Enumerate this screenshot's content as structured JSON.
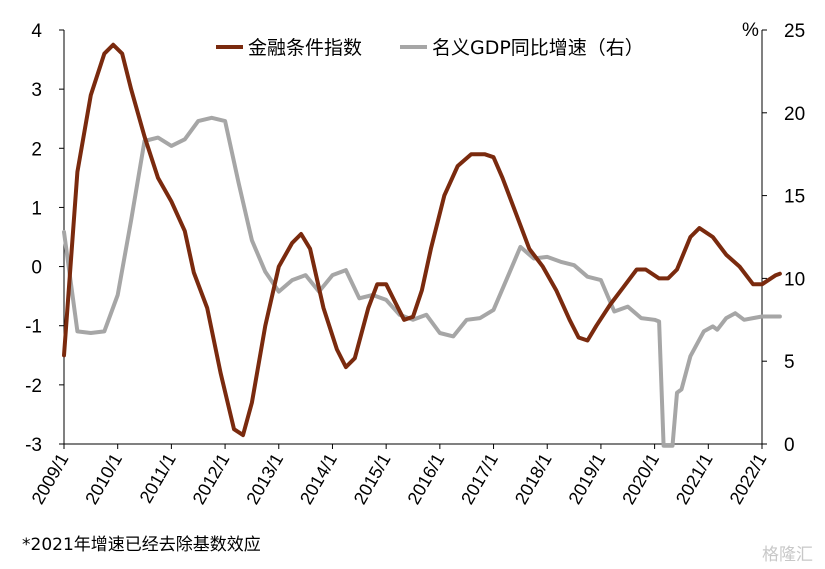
{
  "chart_data": {
    "type": "line",
    "ylim_left": [
      -3,
      4
    ],
    "ylim_right": [
      0,
      25
    ],
    "right_unit": "%",
    "x_tick_labels": [
      "2009/1",
      "2010/1",
      "2011/1",
      "2012/1",
      "2013/1",
      "2014/1",
      "2015/1",
      "2016/1",
      "2017/1",
      "2018/1",
      "2019/1",
      "2020/1",
      "2021/1",
      "2022/1"
    ],
    "y_left_ticks": [
      -3,
      -2,
      -1,
      0,
      1,
      2,
      3,
      4
    ],
    "y_right_ticks": [
      0,
      5,
      10,
      15,
      20,
      25
    ],
    "legend_position": "top-center",
    "grid": false,
    "series": [
      {
        "name": "金融条件指数",
        "axis": "left",
        "color": "#7a2a0e",
        "points": [
          [
            "2009-01",
            -1.5
          ],
          [
            "2009-04",
            1.6
          ],
          [
            "2009-07",
            2.9
          ],
          [
            "2009-10",
            3.6
          ],
          [
            "2009-12",
            3.75
          ],
          [
            "2010-02",
            3.6
          ],
          [
            "2010-04",
            3.0
          ],
          [
            "2010-07",
            2.2
          ],
          [
            "2010-10",
            1.5
          ],
          [
            "2011-01",
            1.1
          ],
          [
            "2011-04",
            0.6
          ],
          [
            "2011-06",
            -0.1
          ],
          [
            "2011-09",
            -0.7
          ],
          [
            "2011-12",
            -1.8
          ],
          [
            "2012-03",
            -2.75
          ],
          [
            "2012-05",
            -2.85
          ],
          [
            "2012-07",
            -2.3
          ],
          [
            "2012-10",
            -1.0
          ],
          [
            "2013-01",
            0.0
          ],
          [
            "2013-04",
            0.4
          ],
          [
            "2013-06",
            0.55
          ],
          [
            "2013-08",
            0.3
          ],
          [
            "2013-11",
            -0.7
          ],
          [
            "2014-02",
            -1.4
          ],
          [
            "2014-04",
            -1.7
          ],
          [
            "2014-06",
            -1.55
          ],
          [
            "2014-09",
            -0.7
          ],
          [
            "2014-11",
            -0.3
          ],
          [
            "2015-01",
            -0.3
          ],
          [
            "2015-03",
            -0.6
          ],
          [
            "2015-05",
            -0.9
          ],
          [
            "2015-07",
            -0.85
          ],
          [
            "2015-09",
            -0.4
          ],
          [
            "2015-11",
            0.3
          ],
          [
            "2016-02",
            1.2
          ],
          [
            "2016-05",
            1.7
          ],
          [
            "2016-08",
            1.9
          ],
          [
            "2016-11",
            1.9
          ],
          [
            "2017-01",
            1.85
          ],
          [
            "2017-03",
            1.5
          ],
          [
            "2017-06",
            0.9
          ],
          [
            "2017-09",
            0.3
          ],
          [
            "2017-12",
            0.0
          ],
          [
            "2018-03",
            -0.4
          ],
          [
            "2018-06",
            -0.9
          ],
          [
            "2018-08",
            -1.2
          ],
          [
            "2018-10",
            -1.25
          ],
          [
            "2018-12",
            -1.0
          ],
          [
            "2019-03",
            -0.65
          ],
          [
            "2019-06",
            -0.35
          ],
          [
            "2019-09",
            -0.05
          ],
          [
            "2019-11",
            -0.05
          ],
          [
            "2020-02",
            -0.2
          ],
          [
            "2020-04",
            -0.2
          ],
          [
            "2020-06",
            -0.05
          ],
          [
            "2020-09",
            0.5
          ],
          [
            "2020-11",
            0.65
          ],
          [
            "2021-02",
            0.5
          ],
          [
            "2021-05",
            0.2
          ],
          [
            "2021-08",
            0.0
          ],
          [
            "2021-11",
            -0.3
          ],
          [
            "2022-01",
            -0.3
          ],
          [
            "2022-04",
            -0.15
          ],
          [
            "2022-05",
            -0.12
          ]
        ]
      },
      {
        "name": "名义GDP同比增速（右）",
        "axis": "right",
        "color": "#a6a6a6",
        "points": [
          [
            "2009-01",
            12.8
          ],
          [
            "2009-04",
            6.8
          ],
          [
            "2009-07",
            6.7
          ],
          [
            "2009-10",
            6.8
          ],
          [
            "2010-01",
            9.0
          ],
          [
            "2010-04",
            13.5
          ],
          [
            "2010-07",
            18.3
          ],
          [
            "2010-10",
            18.5
          ],
          [
            "2011-01",
            18.0
          ],
          [
            "2011-04",
            18.4
          ],
          [
            "2011-07",
            19.5
          ],
          [
            "2011-10",
            19.7
          ],
          [
            "2012-01",
            19.5
          ],
          [
            "2012-04",
            15.8
          ],
          [
            "2012-07",
            12.3
          ],
          [
            "2012-10",
            10.4
          ],
          [
            "2013-01",
            9.2
          ],
          [
            "2013-04",
            9.9
          ],
          [
            "2013-07",
            10.2
          ],
          [
            "2013-10",
            9.2
          ],
          [
            "2014-01",
            10.2
          ],
          [
            "2014-04",
            10.5
          ],
          [
            "2014-07",
            8.8
          ],
          [
            "2014-10",
            9.0
          ],
          [
            "2015-01",
            8.7
          ],
          [
            "2015-04",
            7.8
          ],
          [
            "2015-07",
            7.5
          ],
          [
            "2015-10",
            7.8
          ],
          [
            "2016-01",
            6.7
          ],
          [
            "2016-04",
            6.5
          ],
          [
            "2016-07",
            7.5
          ],
          [
            "2016-10",
            7.6
          ],
          [
            "2017-01",
            8.1
          ],
          [
            "2017-04",
            10.0
          ],
          [
            "2017-07",
            11.9
          ],
          [
            "2017-10",
            11.2
          ],
          [
            "2018-01",
            11.3
          ],
          [
            "2018-04",
            11.0
          ],
          [
            "2018-07",
            10.8
          ],
          [
            "2018-10",
            10.1
          ],
          [
            "2019-01",
            9.9
          ],
          [
            "2019-04",
            8.0
          ],
          [
            "2019-07",
            8.3
          ],
          [
            "2019-10",
            7.6
          ],
          [
            "2020-01",
            7.5
          ],
          [
            "2020-02",
            7.4
          ],
          [
            "2020-03",
            -0.1
          ],
          [
            "2020-04",
            -0.1
          ],
          [
            "2020-05",
            -0.1
          ],
          [
            "2020-06",
            3.1
          ],
          [
            "2020-07",
            3.3
          ],
          [
            "2020-09",
            5.3
          ],
          [
            "2020-12",
            6.8
          ],
          [
            "2021-02",
            7.1
          ],
          [
            "2021-03",
            6.9
          ],
          [
            "2021-05",
            7.6
          ],
          [
            "2021-07",
            7.9
          ],
          [
            "2021-09",
            7.5
          ],
          [
            "2021-11",
            7.6
          ],
          [
            "2022-01",
            7.7
          ],
          [
            "2022-05",
            7.7
          ]
        ]
      }
    ]
  },
  "footnote": "*2021年增速已经去除基数效应",
  "watermark": "格隆汇"
}
